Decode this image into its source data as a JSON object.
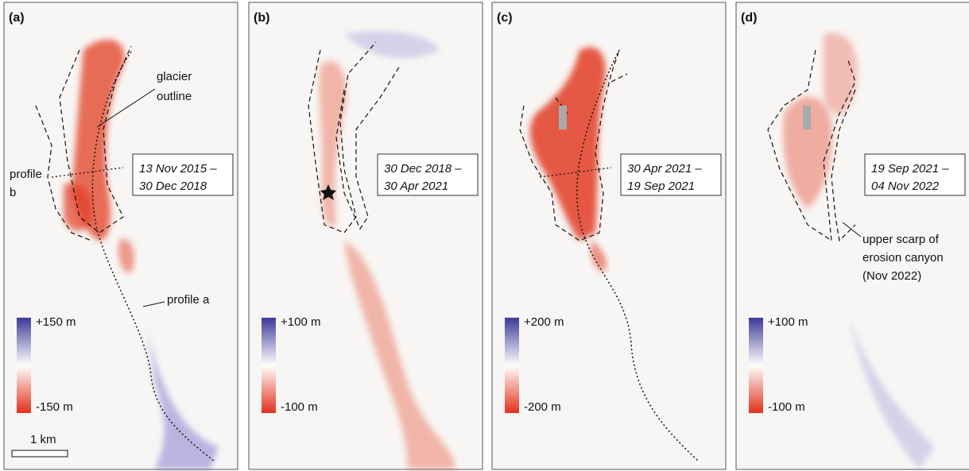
{
  "panels": [
    {
      "label": "(a)",
      "period": [
        "13 Nov 2015 –",
        "30 Dec 2018"
      ],
      "legend": {
        "max": "+150 m",
        "min": "-150 m"
      }
    },
    {
      "label": "(b)",
      "period": [
        "30 Dec 2018 –",
        "30 Apr 2021"
      ],
      "legend": {
        "max": "+100 m",
        "min": "-100 m"
      }
    },
    {
      "label": "(c)",
      "period": [
        "30 Apr 2021 –",
        "19 Sep 2021"
      ],
      "legend": {
        "max": "+200 m",
        "min": "-200 m"
      }
    },
    {
      "label": "(d)",
      "period": [
        "19 Sep 2021 –",
        "04 Nov 2022"
      ],
      "legend": {
        "max": "+100 m",
        "min": "-100 m"
      }
    }
  ],
  "annotations": {
    "glacier_outline": [
      "glacier",
      "outline"
    ],
    "profile_b": [
      "profile",
      "b"
    ],
    "profile_a": "profile a",
    "scale_bar": "1 km",
    "scarp": [
      "upper scarp of",
      "erosion canyon",
      "(Nov 2022)"
    ]
  }
}
